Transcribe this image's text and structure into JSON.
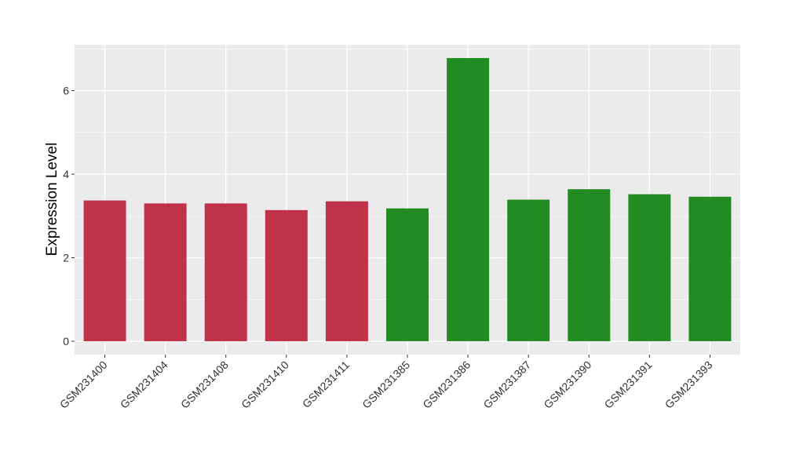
{
  "chart_data": {
    "type": "bar",
    "title": "",
    "xlabel": "",
    "ylabel": "Expression Level",
    "categories": [
      "GSM231400",
      "GSM231404",
      "GSM231408",
      "GSM231410",
      "GSM231411",
      "GSM231385",
      "GSM231386",
      "GSM231387",
      "GSM231390",
      "GSM231391",
      "GSM231393"
    ],
    "values": [
      3.37,
      3.3,
      3.3,
      3.14,
      3.35,
      3.18,
      6.78,
      3.39,
      3.64,
      3.52,
      3.46
    ],
    "bar_colors": [
      "#c0314a",
      "#c0314a",
      "#c0314a",
      "#c0314a",
      "#c0314a",
      "#228b22",
      "#228b22",
      "#228b22",
      "#228b22",
      "#228b22",
      "#228b22"
    ],
    "ylim": [
      -0.32,
      7.1
    ],
    "yticks": [
      0,
      2,
      4,
      6
    ],
    "grid": true,
    "panel_background": "#ebebeb",
    "grid_color": "#ffffff"
  }
}
